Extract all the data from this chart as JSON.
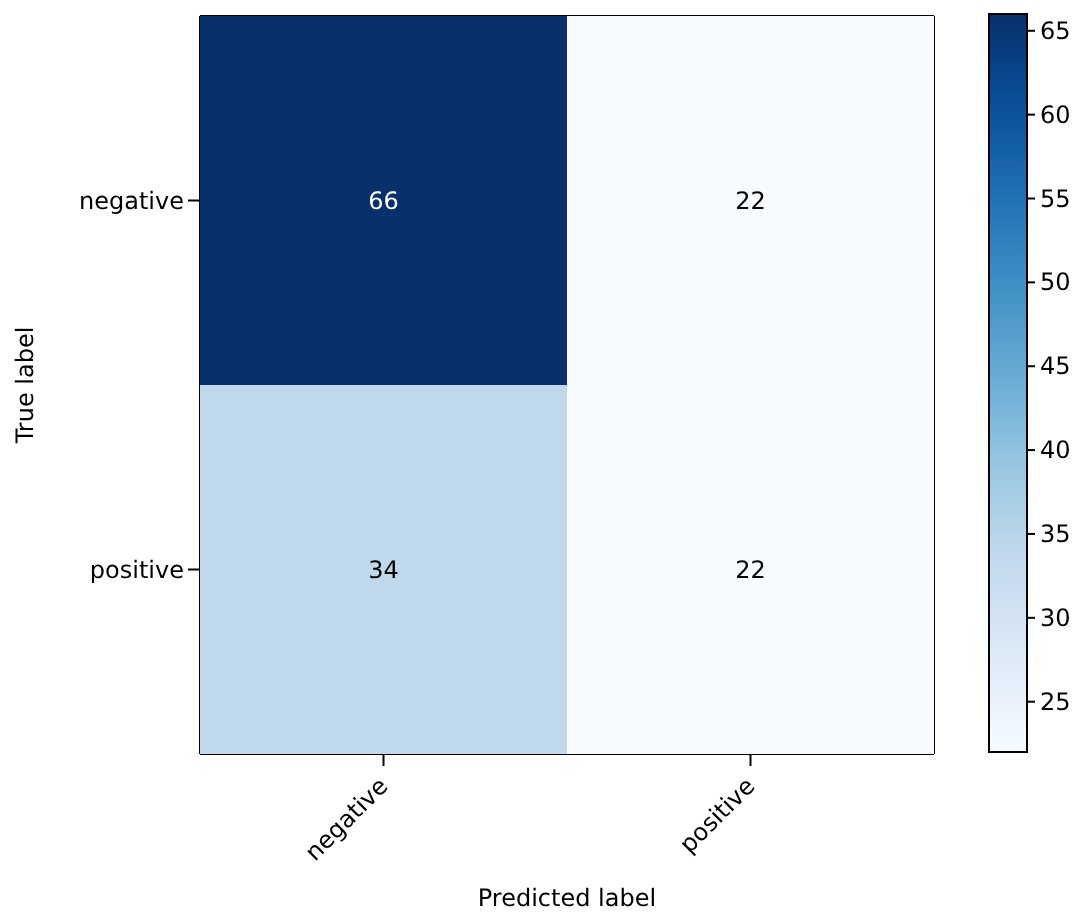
{
  "chart_data": {
    "type": "heatmap",
    "xlabel": "Predicted label",
    "ylabel": "True label",
    "categories": [
      "negative",
      "positive"
    ],
    "y_categories": [
      "negative",
      "positive"
    ],
    "cells": [
      [
        66,
        22
      ],
      [
        34,
        22
      ]
    ],
    "data_labels": true,
    "clim": [
      22,
      66
    ],
    "cticks": [
      25,
      30,
      35,
      40,
      45,
      50,
      55,
      60,
      65
    ]
  }
}
